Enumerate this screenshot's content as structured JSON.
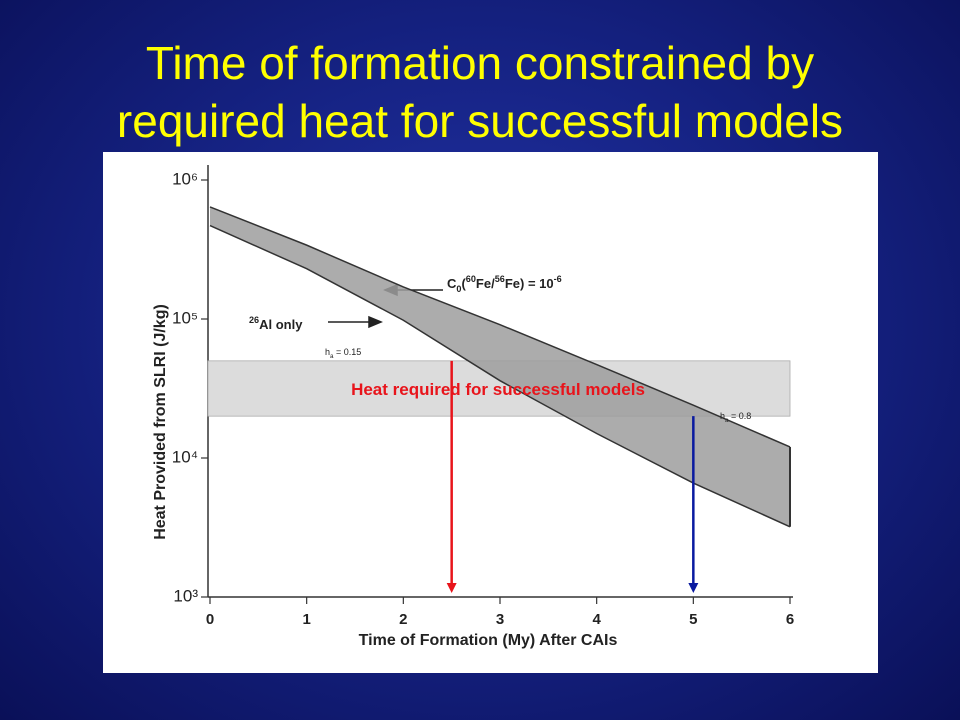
{
  "title": [
    "Time of formation constrained by",
    "required heat for successful models"
  ],
  "chart_data": {
    "type": "band",
    "xlabel": "Time of Formation (My) After CAIs",
    "ylabel": "Heat Provided from SLRI (J/kg)",
    "x": [
      0,
      1,
      2,
      3,
      4,
      5,
      6
    ],
    "series": [
      {
        "values": [
          640000,
          340000,
          170000,
          91000,
          47000,
          24000,
          12000
        ],
        "color": "#9e9e9e"
      },
      {
        "values": [
          470000,
          230000,
          98000,
          36000,
          15000,
          6600,
          3200
        ],
        "color": "#9e9e9e"
      }
    ],
    "xlim": [
      0,
      6
    ],
    "xticks": [
      0,
      1,
      2,
      3,
      4,
      5,
      6
    ],
    "ylim": [
      1000,
      1000000
    ],
    "log_y": true,
    "yticks": [
      {
        "value": 1000,
        "label": "10³"
      },
      {
        "value": 10000,
        "label": "10⁴"
      },
      {
        "value": 100000,
        "label": "10⁵"
      },
      {
        "value": 1000000,
        "label": "10⁶"
      }
    ],
    "heat_band": {
      "range": [
        20000,
        50000
      ],
      "color": "#dcdcdc",
      "label": "Heat required for successful models",
      "label_color": "#e8141b"
    },
    "markers": [
      {
        "x": 2.5,
        "from": 50000,
        "color": "#e8141b"
      },
      {
        "x": 5,
        "from": 20000,
        "color": "#0a1aa0"
      }
    ],
    "annotations": [
      [
        {
          "text": "C"
        },
        {
          "text": "0",
          "sub": true
        },
        {
          "text": "("
        },
        {
          "text": "60",
          "sup": true
        },
        {
          "text": "Fe/"
        },
        {
          "text": "56",
          "sup": true
        },
        {
          "text": "Fe) = 10"
        },
        {
          "text": "-6",
          "sup": true
        }
      ],
      [
        {
          "text": "26",
          "sup": true
        },
        {
          "text": "Al only"
        }
      ],
      [
        {
          "text": "h"
        },
        {
          "text": "a",
          "sub": true
        },
        {
          "text": " = 0.15"
        }
      ],
      [
        {
          "text": "h"
        },
        {
          "text": "a",
          "sub": true
        },
        {
          "text": " = 0.8"
        }
      ]
    ]
  }
}
